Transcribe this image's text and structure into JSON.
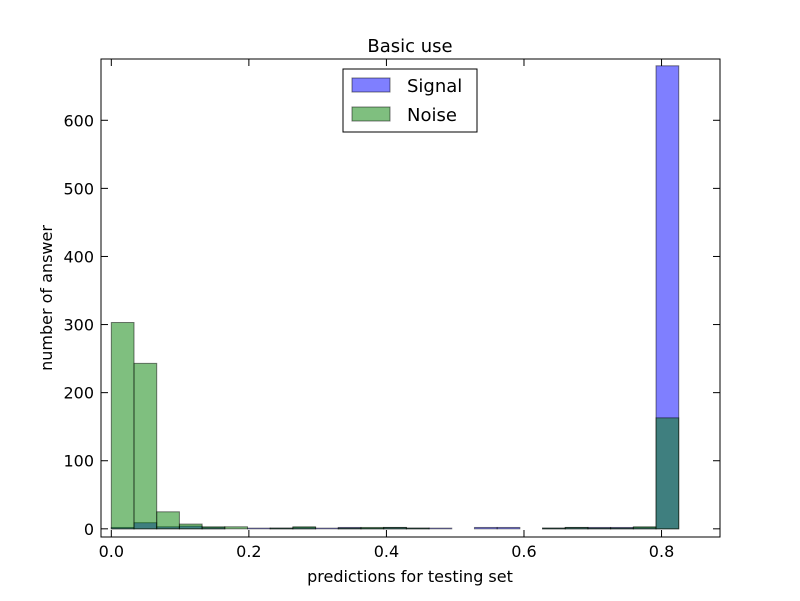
{
  "chart_data": {
    "type": "histogram",
    "title": "Basic use",
    "xlabel": "predictions for testing set",
    "ylabel": "number of answer",
    "xlim": [
      -0.015,
      0.885
    ],
    "ylim": [
      -12,
      690
    ],
    "x_ticks": [
      0.0,
      0.2,
      0.4,
      0.6,
      0.8
    ],
    "x_tick_labels": [
      "0.0",
      "0.2",
      "0.4",
      "0.6",
      "0.8"
    ],
    "y_ticks": [
      0,
      100,
      200,
      300,
      400,
      500,
      600
    ],
    "y_tick_labels": [
      "0",
      "100",
      "200",
      "300",
      "400",
      "500",
      "600"
    ],
    "bin_edges": [
      0.0,
      0.033,
      0.066,
      0.099,
      0.132,
      0.165,
      0.198,
      0.231,
      0.264,
      0.297,
      0.33,
      0.363,
      0.396,
      0.429,
      0.462,
      0.495,
      0.528,
      0.561,
      0.594,
      0.627,
      0.66,
      0.693,
      0.726,
      0.759,
      0.792,
      0.825
    ],
    "series": [
      {
        "name": "Signal",
        "color": "#0000ff",
        "values": [
          2,
          9,
          3,
          4,
          2,
          0,
          1,
          1,
          2,
          1,
          2,
          1,
          2,
          1,
          1,
          0,
          2,
          2,
          0,
          1,
          2,
          2,
          2,
          2,
          680
        ]
      },
      {
        "name": "Noise",
        "color": "#008000",
        "values": [
          303,
          243,
          25,
          7,
          3,
          3,
          0,
          1,
          3,
          0,
          1,
          2,
          2,
          1,
          0,
          0,
          0,
          0,
          0,
          1,
          2,
          1,
          1,
          3,
          163
        ]
      }
    ],
    "legend_position": "top-center",
    "grid": false
  }
}
